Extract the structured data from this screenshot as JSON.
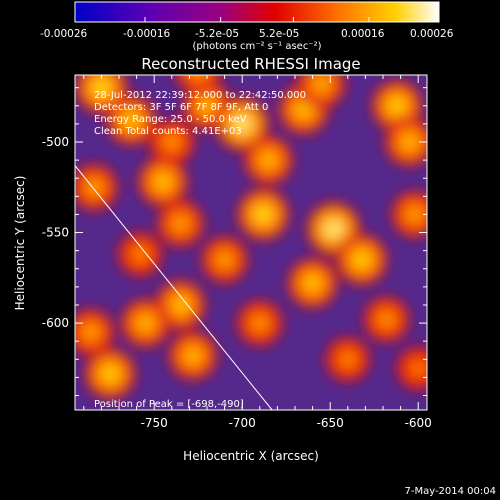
{
  "colorbar": {
    "tick_labels": [
      "-0.00026",
      "-0.00016",
      "-5.2e-05",
      "5.2e-05",
      "0.00016",
      "0.00026"
    ],
    "unit_label": "(photons cm⁻² s⁻¹ asec⁻²)",
    "range": [
      -0.00026,
      0.00026
    ],
    "colors": [
      "#0000c8",
      "#5a00b4",
      "#9a0080",
      "#e00000",
      "#ff7000",
      "#ffd000",
      "#ffffff"
    ]
  },
  "chart_data": {
    "type": "heatmap",
    "title": "Reconstructed RHESSI Image",
    "xlabel": "Heliocentric X (arcsec)",
    "ylabel": "Heliocentric Y (arcsec)",
    "xlim": [
      -795,
      -595
    ],
    "ylim": [
      -648,
      -463
    ],
    "x_ticks": [
      -750,
      -700,
      -650,
      -600
    ],
    "y_ticks": [
      -500,
      -550,
      -600
    ],
    "x_tick_labels": [
      "-750",
      "-700",
      "-650",
      "-600"
    ],
    "y_tick_labels": [
      "-500",
      "-550",
      "-600"
    ],
    "info_lines": [
      "28-Jul-2012 22:39:12.000 to 22:42:50.000",
      "Detectors: 3F 5F 6F 7F 8F 9F, Att 0",
      "Energy Range: 25.0 - 50.0 keV",
      "Clean     Total counts: 4.41E+03"
    ],
    "peak_label": "Position of Peak = [-698,-490]",
    "peak": {
      "x": -698,
      "y": -490
    },
    "limb_line": [
      {
        "x": -795,
        "y": -513
      },
      {
        "x": -683,
        "y": -648
      }
    ],
    "hot_spots": [
      {
        "x": -780,
        "y": -470,
        "intensity": 0.85
      },
      {
        "x": -763,
        "y": -488,
        "intensity": 0.75
      },
      {
        "x": -784,
        "y": -525,
        "intensity": 0.6
      },
      {
        "x": -740,
        "y": -500,
        "intensity": 0.55
      },
      {
        "x": -745,
        "y": -522,
        "intensity": 0.75
      },
      {
        "x": -735,
        "y": -545,
        "intensity": 0.6
      },
      {
        "x": -720,
        "y": -480,
        "intensity": 0.7
      },
      {
        "x": -700,
        "y": -490,
        "intensity": 0.95
      },
      {
        "x": -685,
        "y": -510,
        "intensity": 0.7
      },
      {
        "x": -665,
        "y": -482,
        "intensity": 0.75
      },
      {
        "x": -655,
        "y": -468,
        "intensity": 0.65
      },
      {
        "x": -612,
        "y": -480,
        "intensity": 0.8
      },
      {
        "x": -605,
        "y": -500,
        "intensity": 0.7
      },
      {
        "x": -602,
        "y": -540,
        "intensity": 0.6
      },
      {
        "x": -688,
        "y": -540,
        "intensity": 0.85
      },
      {
        "x": -648,
        "y": -548,
        "intensity": 0.95
      },
      {
        "x": -632,
        "y": -565,
        "intensity": 0.8
      },
      {
        "x": -660,
        "y": -578,
        "intensity": 0.75
      },
      {
        "x": -710,
        "y": -565,
        "intensity": 0.6
      },
      {
        "x": -735,
        "y": -590,
        "intensity": 0.75
      },
      {
        "x": -755,
        "y": -600,
        "intensity": 0.7
      },
      {
        "x": -728,
        "y": -618,
        "intensity": 0.7
      },
      {
        "x": -775,
        "y": -628,
        "intensity": 0.8
      },
      {
        "x": -786,
        "y": -605,
        "intensity": 0.6
      },
      {
        "x": -690,
        "y": -600,
        "intensity": 0.55
      },
      {
        "x": -640,
        "y": -620,
        "intensity": 0.5
      },
      {
        "x": -618,
        "y": -598,
        "intensity": 0.55
      },
      {
        "x": -600,
        "y": -625,
        "intensity": 0.45
      },
      {
        "x": -758,
        "y": -562,
        "intensity": 0.5
      },
      {
        "x": -725,
        "y": -460,
        "intensity": 0.6
      }
    ]
  },
  "timestamp": "7-May-2014 00:04"
}
